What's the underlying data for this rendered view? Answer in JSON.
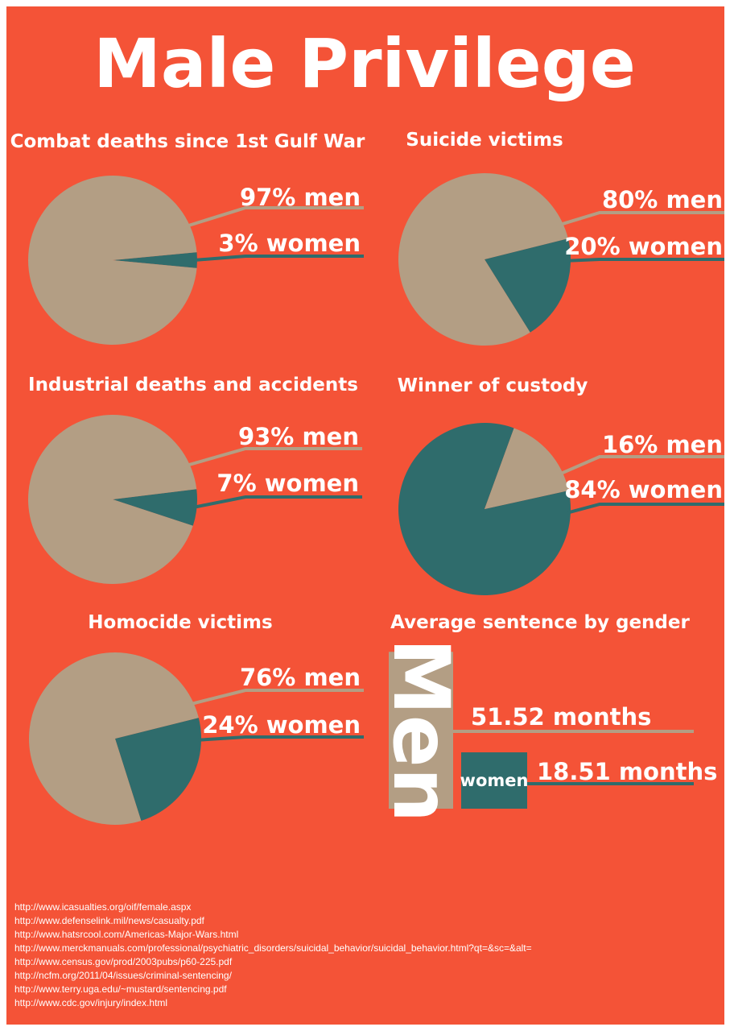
{
  "title": "Male Privilege",
  "chart_data": [
    {
      "type": "pie",
      "title": "Combat deaths since 1st Gulf War",
      "values": [
        97,
        3
      ],
      "value_labels": [
        "97% men",
        "3% women"
      ],
      "colors": [
        "#b39e84",
        "#2f6c6c"
      ]
    },
    {
      "type": "pie",
      "title": "Suicide victims",
      "values": [
        80,
        20
      ],
      "value_labels": [
        "80% men",
        "20% women"
      ],
      "colors": [
        "#b39e84",
        "#2f6c6c"
      ]
    },
    {
      "type": "pie",
      "title": "Industrial deaths and accidents",
      "values": [
        93,
        7
      ],
      "value_labels": [
        "93% men",
        "7% women"
      ],
      "colors": [
        "#b39e84",
        "#2f6c6c"
      ]
    },
    {
      "type": "pie",
      "title": "Winner of custody",
      "values": [
        16,
        84
      ],
      "value_labels": [
        "16% men",
        "84% women"
      ],
      "colors": [
        "#b39e84",
        "#2f6c6c"
      ]
    },
    {
      "type": "pie",
      "title": "Homocide victims",
      "values": [
        76,
        24
      ],
      "value_labels": [
        "76% men",
        "24% women"
      ],
      "colors": [
        "#b39e84",
        "#2f6c6c"
      ]
    },
    {
      "type": "bar",
      "title": "Average sentence by gender",
      "categories": [
        "Men",
        "women"
      ],
      "values": [
        51.52,
        18.51
      ],
      "value_labels": [
        "51.52 months",
        "18.51 months"
      ],
      "colors": [
        "#b39e84",
        "#2f6c6c"
      ]
    }
  ],
  "sources": [
    "http://www.icasualties.org/oif/female.aspx",
    "http://www.defenselink.mil/news/casualty.pdf",
    "http://www.hatsrcool.com/Americas-Major-Wars.html",
    "http://www.merckmanuals.com/professional/psychiatric_disorders/suicidal_behavior/suicidal_behavior.html?qt=&sc=&alt=",
    "http://www.census.gov/prod/2003pubs/p60-225.pdf",
    "http://ncfm.org/2011/04/issues/criminal-sentencing/",
    "http://www.terry.uga.edu/~mustard/sentencing.pdf",
    "http://www.cdc.gov/injury/index.html"
  ]
}
